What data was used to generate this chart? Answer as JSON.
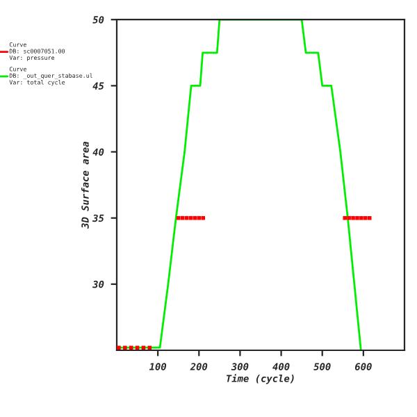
{
  "chart_data": {
    "type": "line",
    "xlabel": "Time (cycle)",
    "ylabel": "3D Surface area",
    "xlim": [
      0,
      700
    ],
    "ylim": [
      25,
      50
    ],
    "xticks": [
      100,
      200,
      300,
      400,
      500,
      600
    ],
    "yticks": [
      30,
      35,
      40,
      45,
      50
    ],
    "legend": "top left",
    "grid": false,
    "series": [
      {
        "name": "Curve\nDB: sc0007051.00\nVar: pressure",
        "color": "#ff0000",
        "type": "scatter",
        "x": [
          5,
          20,
          35,
          50,
          65,
          80,
          150,
          160,
          170,
          180,
          190,
          200,
          210,
          555,
          565,
          575,
          585,
          595,
          605,
          615
        ],
        "values": [
          25.2,
          25.2,
          25.2,
          25.2,
          25.2,
          25.2,
          35,
          35,
          35,
          35,
          35,
          35,
          35,
          35,
          35,
          35,
          35,
          35,
          35,
          35
        ]
      },
      {
        "name": "Curve\nDB: _out_quer_stabase.ul\nVar: total cycle",
        "color": "#00ee00",
        "x": [
          0,
          105,
          125,
          144,
          165,
          181,
          203,
          209,
          244,
          250,
          450,
          460,
          490,
          500,
          522,
          544,
          562,
          578,
          594
        ],
        "values": [
          25.2,
          25.2,
          30,
          35,
          40,
          45,
          45,
          47.5,
          47.5,
          50,
          50,
          47.5,
          47.5,
          45,
          45,
          40,
          35,
          30,
          25
        ]
      }
    ]
  }
}
